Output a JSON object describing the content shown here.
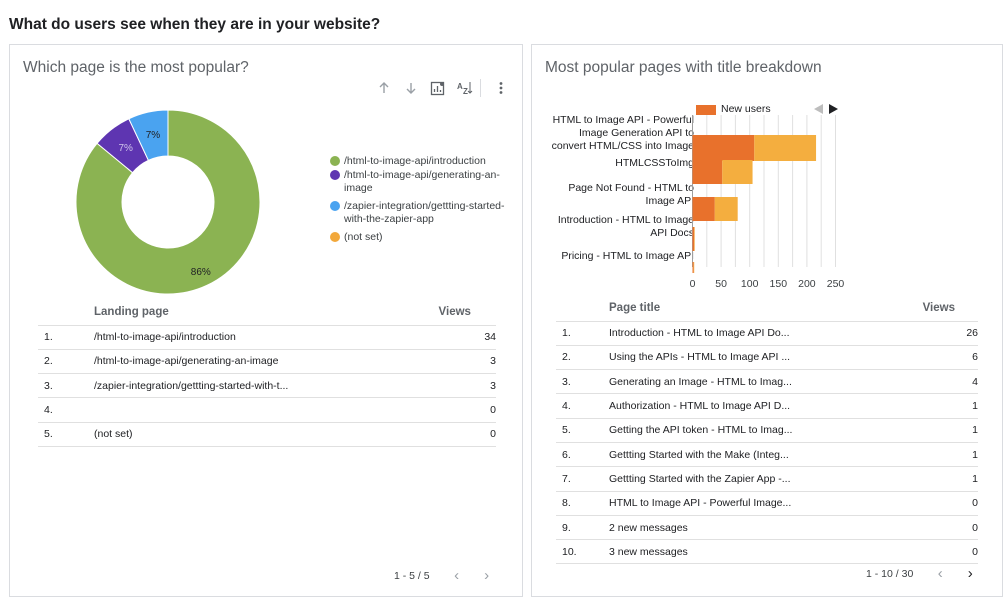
{
  "page": {
    "heading": "What do users see when they are in your website?"
  },
  "left_panel": {
    "title": "Which page is the most popular?",
    "toolbar": {
      "sort_asc_icon": "arrow-up-icon",
      "sort_desc_icon": "arrow-down-icon",
      "drill_icon": "chart-drill-icon",
      "sort_az_icon": "sort-az-icon",
      "more_icon": "more-vert-icon"
    },
    "legend": [
      {
        "label": "/html-to-image-api/introduction",
        "color": "#8bb352"
      },
      {
        "label": "/html-to-image-api/generating-an-image",
        "color": "#5e35b1"
      },
      {
        "label": "/zapier-integration/gettting-started-with-the-zapier-app",
        "color": "#4aa3f0"
      },
      {
        "label": "(not set)",
        "color": "#f2a83b"
      }
    ],
    "table": {
      "col_page": "Landing page",
      "col_views": "Views",
      "rows": [
        {
          "idx": "1.",
          "page": "/html-to-image-api/introduction",
          "views": "34"
        },
        {
          "idx": "2.",
          "page": "/html-to-image-api/generating-an-image",
          "views": "3"
        },
        {
          "idx": "3.",
          "page": "/zapier-integration/gettting-started-with-t...",
          "views": "3"
        },
        {
          "idx": "4.",
          "page": "",
          "views": "0"
        },
        {
          "idx": "5.",
          "page": "(not set)",
          "views": "0"
        }
      ]
    },
    "pager": {
      "range": "1 - 5 / 5",
      "prev_icon": "chevron-left-icon",
      "next_icon": "chevron-right-icon"
    }
  },
  "right_panel": {
    "title": "Most popular pages with title breakdown",
    "legend_label": "New users",
    "legend_prev_icon": "triangle-left-icon",
    "legend_next_icon": "triangle-right-icon",
    "bar_labels": [
      "HTML to Image API - Powerful Image Generation API to convert HTML/CSS into Image",
      "HTMLCSSToImg",
      "Page Not Found - HTML to Image API",
      "Introduction - HTML to Image API Docs",
      "Pricing - HTML to Image API"
    ],
    "table": {
      "col_title": "Page title",
      "col_views": "Views",
      "rows": [
        {
          "idx": "1.",
          "title": "Introduction - HTML to Image API Do...",
          "views": "26"
        },
        {
          "idx": "2.",
          "title": "Using the APIs - HTML to Image API ...",
          "views": "6"
        },
        {
          "idx": "3.",
          "title": "Generating an Image - HTML to Imag...",
          "views": "4"
        },
        {
          "idx": "4.",
          "title": "Authorization - HTML to Image API D...",
          "views": "1"
        },
        {
          "idx": "5.",
          "title": "Getting the API token - HTML to Imag...",
          "views": "1"
        },
        {
          "idx": "6.",
          "title": "Gettting Started with the Make (Integ...",
          "views": "1"
        },
        {
          "idx": "7.",
          "title": "Gettting Started with the Zapier App -...",
          "views": "1"
        },
        {
          "idx": "8.",
          "title": "HTML to Image API - Powerful Image...",
          "views": "0"
        },
        {
          "idx": "9.",
          "title": "2 new messages",
          "views": "0"
        },
        {
          "idx": "10.",
          "title": "3 new messages",
          "views": "0"
        }
      ]
    },
    "pager": {
      "range": "1 - 10 / 30",
      "prev_icon": "chevron-left-icon",
      "next_icon": "chevron-right-icon"
    }
  },
  "chart_data": [
    {
      "type": "pie",
      "donut": true,
      "categories": [
        "/html-to-image-api/introduction",
        "/html-to-image-api/generating-an-image",
        "/zapier-integration/gettting-started-with-the-zapier-app",
        "(not set)"
      ],
      "values": [
        86,
        7,
        7,
        0
      ],
      "data_labels": [
        "86%",
        "7%",
        "7%",
        ""
      ],
      "colors": [
        "#8bb352",
        "#5e35b1",
        "#4aa3f0",
        "#f2a83b"
      ],
      "legend": "right"
    },
    {
      "type": "bar",
      "orientation": "horizontal",
      "stacked": true,
      "categories": [
        "HTML to Image API - Powerful Image Generation API to convert HTML/CSS into Image",
        "HTMLCSSToImg",
        "Page Not Found - HTML to Image API",
        "Introduction - HTML to Image API Docs",
        "Pricing - HTML to Image API"
      ],
      "series": [
        {
          "name": "New users",
          "values": [
            108,
            52,
            39,
            3,
            2
          ],
          "color": "#e8712c"
        },
        {
          "values": [
            108,
            53,
            40,
            1,
            1
          ],
          "color": "#f4ae3f"
        }
      ],
      "xlim": [
        0,
        250
      ],
      "xticks": [
        "0",
        "50",
        "100",
        "150",
        "200",
        "250"
      ],
      "grid": true,
      "legend": "top"
    }
  ]
}
